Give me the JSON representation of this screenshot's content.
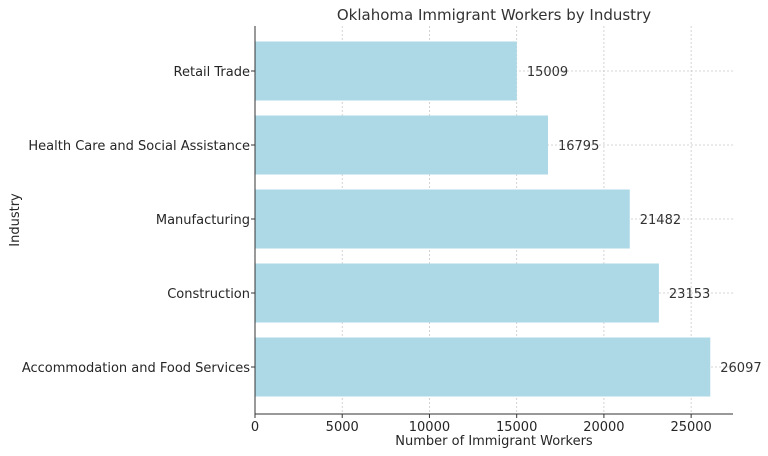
{
  "chart_data": {
    "type": "bar",
    "orientation": "horizontal",
    "title": "Oklahoma Immigrant Workers by Industry",
    "xlabel": "Number of Immigrant Workers",
    "ylabel": "Industry",
    "categories": [
      "Accommodation and Food Services",
      "Construction",
      "Manufacturing",
      "Health Care and Social Assistance",
      "Retail Trade"
    ],
    "values": [
      26097,
      23153,
      21482,
      16795,
      15009
    ],
    "xlim": [
      0,
      27400
    ],
    "xticks": [
      0,
      5000,
      10000,
      15000,
      20000,
      25000
    ],
    "grid": true,
    "bar_color": "#add8e6",
    "data_labels": true
  }
}
